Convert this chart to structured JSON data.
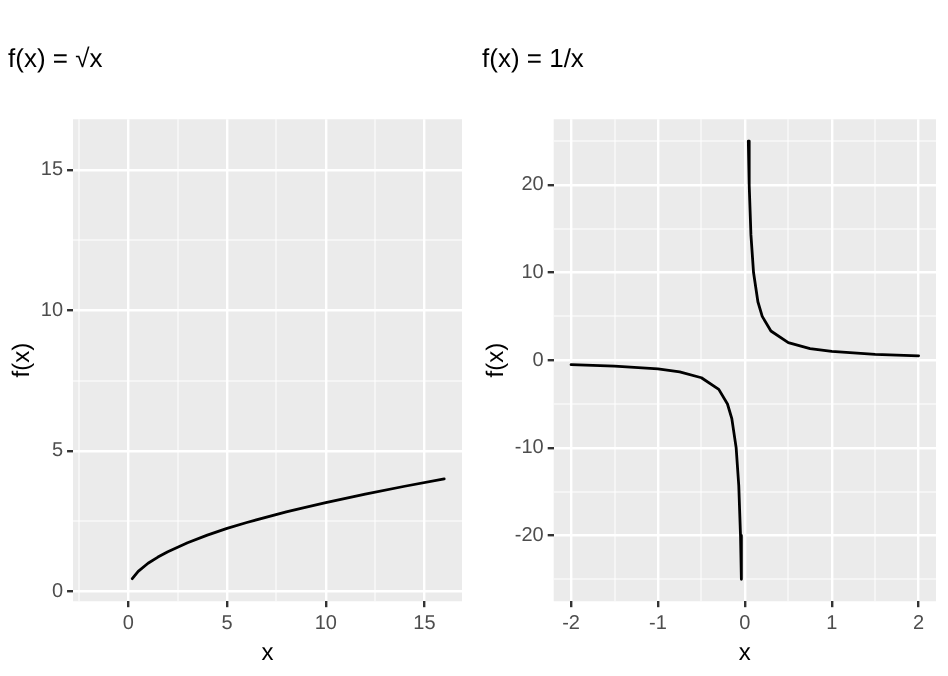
{
  "chart_data": [
    {
      "type": "line",
      "title": "f(x) = √x",
      "xlabel": "x",
      "ylabel": "f(x)",
      "grid": true,
      "marker": "none",
      "line_style": "solid",
      "xlim": [
        -2.8,
        16.9
      ],
      "ylim": [
        -0.35,
        16.8
      ],
      "xticks": [
        {
          "value": -2.5,
          "label": null
        },
        0,
        {
          "value": 2.5,
          "label": null
        },
        5,
        {
          "value": 7.5,
          "label": null
        },
        10,
        {
          "value": 12.5,
          "label": null
        },
        15
      ],
      "yticks": [
        0,
        {
          "value": 2.5,
          "label": null
        },
        5,
        {
          "value": 7.5,
          "label": null
        },
        10,
        {
          "value": 12.5,
          "label": null
        },
        15
      ],
      "series": [
        {
          "color": "#000000",
          "x": [
            0.2,
            0.5,
            1,
            1.5,
            2,
            3,
            4,
            5,
            6,
            8,
            10,
            12,
            14,
            16
          ],
          "values": [
            0.45,
            0.71,
            1,
            1.22,
            1.41,
            1.73,
            2,
            2.24,
            2.45,
            2.83,
            3.16,
            3.46,
            3.74,
            4
          ]
        }
      ]
    },
    {
      "type": "line",
      "title": "f(x) = 1/x",
      "xlabel": "x",
      "ylabel": "f(x)",
      "grid": true,
      "marker": "none",
      "line_style": "solid",
      "xlim": [
        -2.2,
        2.2
      ],
      "ylim": [
        -27.5,
        27.5
      ],
      "xticks": [
        -2,
        {
          "value": -1.5,
          "label": null
        },
        -1,
        {
          "value": -0.5,
          "label": null
        },
        0,
        {
          "value": 0.5,
          "label": null
        },
        1,
        {
          "value": 1.5,
          "label": null
        },
        2
      ],
      "yticks": [
        {
          "value": -25,
          "label": null
        },
        -20,
        {
          "value": -15,
          "label": null
        },
        -10,
        {
          "value": -5,
          "label": null
        },
        0,
        {
          "value": 5,
          "label": null
        },
        10,
        {
          "value": 15,
          "label": null
        },
        20,
        {
          "value": 25,
          "label": null
        }
      ],
      "series": [
        {
          "color": "#000000",
          "x": [
            -2,
            -1.5,
            -1,
            -0.75,
            -0.5,
            -0.3,
            -0.2,
            -0.15,
            -0.1,
            -0.07,
            -0.05,
            -0.04,
            0,
            0.04,
            0.05,
            0.07,
            0.1,
            0.15,
            0.2,
            0.3,
            0.5,
            0.75,
            1,
            1.5,
            2
          ],
          "values": [
            -0.5,
            -0.67,
            -1,
            -1.33,
            -2,
            -3.33,
            -5,
            -6.67,
            -10,
            -14.3,
            -20,
            -25,
            null,
            25,
            20,
            14.3,
            10,
            6.67,
            5,
            3.33,
            2,
            1.33,
            1,
            0.67,
            0.5
          ]
        }
      ]
    }
  ]
}
